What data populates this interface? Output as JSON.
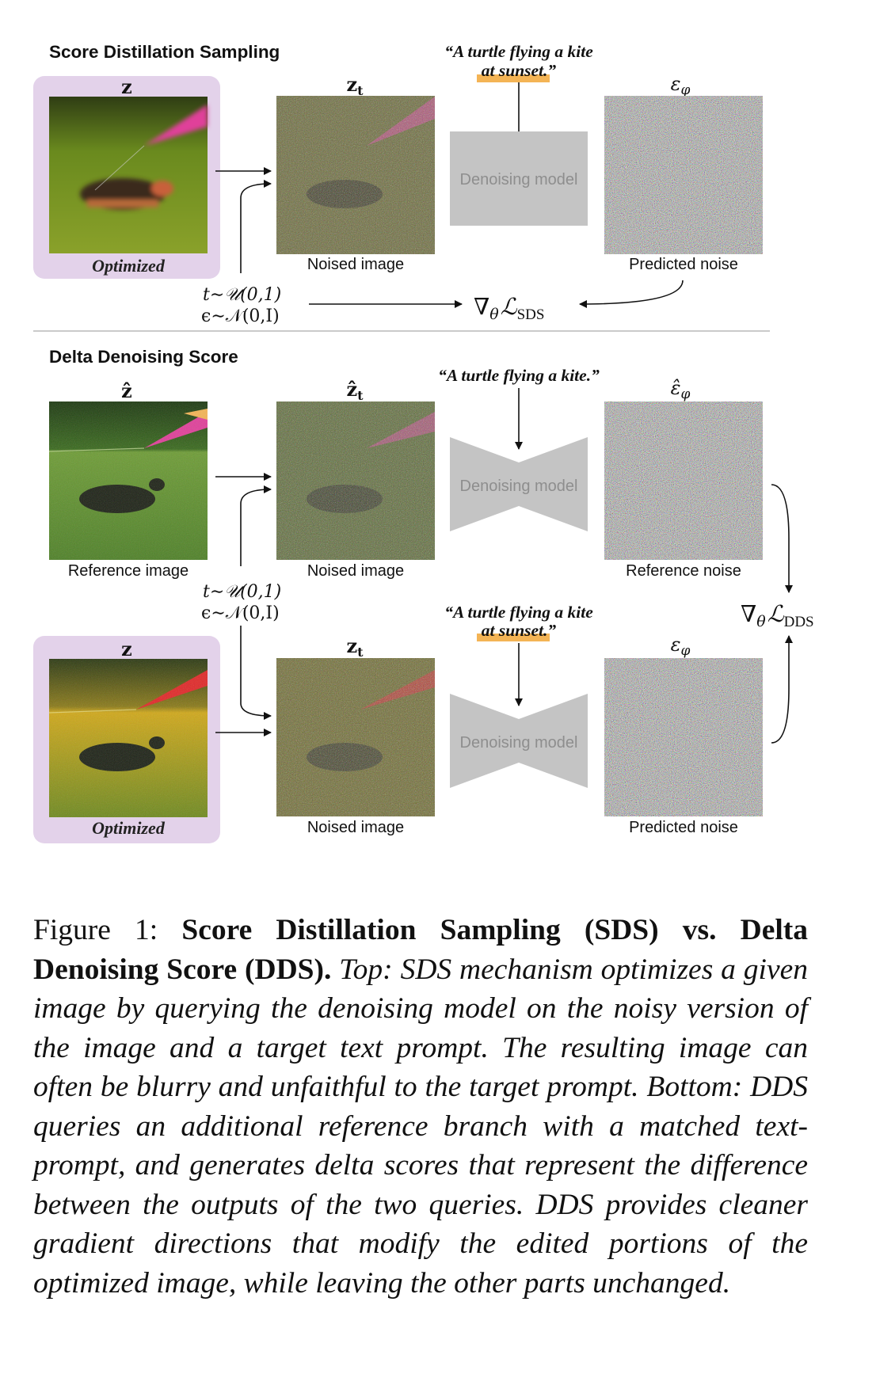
{
  "sds": {
    "title": "Score Distillation Sampling",
    "z_label": "z",
    "zt_label": "z",
    "zt_sub": "t",
    "optimized_label": "Optimized",
    "noised_label": "Noised image",
    "prompt_line1": "“A turtle flying a kite",
    "prompt_line2": "at sunset.”",
    "model_label": "Denoising model",
    "eps_label": "ε",
    "eps_sub": "φ",
    "predicted_label": "Predicted noise",
    "t_dist": "t∼𝒰(0,1)",
    "eps_dist": "ϵ∼𝒩(0,I)",
    "grad": "∇",
    "grad_theta": "θ",
    "grad_L": "ℒ",
    "grad_sub": "SDS"
  },
  "dds": {
    "title": "Delta Denoising Score",
    "zhat_label": "ẑ",
    "zhat_t_label": "ẑ",
    "zhat_t_sub": "t",
    "reference_label": "Reference image",
    "noised_label_top": "Noised image",
    "prompt_ref": "“A turtle flying a kite.”",
    "model_label_top": "Denoising model",
    "epshat_label": "ε̂",
    "epshat_sub": "φ",
    "reference_noise_label": "Reference noise",
    "t_dist": "t∼𝒰(0,1)",
    "eps_dist": "ϵ∼𝒩(0,I)",
    "grad": "∇",
    "grad_theta": "θ",
    "grad_L": "ℒ",
    "grad_sub": "DDS",
    "z_label": "z",
    "zt_label": "z",
    "zt_sub": "t",
    "optimized_label": "Optimized",
    "noised_label_bottom": "Noised image",
    "prompt_line1": "“A turtle flying a kite",
    "prompt_line2": "at sunset.”",
    "model_label_bottom": "Denoising model",
    "eps_label": "ε",
    "eps_sub": "φ",
    "predicted_label": "Predicted noise"
  },
  "colors": {
    "optimized_bg": "#e3d2ea",
    "highlight": "#f4b455",
    "model_gray": "#c4c4c4",
    "model_text": "#8e8e8e"
  },
  "caption": {
    "fig_label": "Figure 1:",
    "bold_title": "Score Distillation Sampling (SDS) vs. Delta Denoising Score (DDS).",
    "top_label": "Top:",
    "top_text": "SDS mechanism optimizes a given image by querying the denoising model on the noisy version of the image and a target text prompt. The resulting image can often be blurry and unfaithful to the target prompt.",
    "bottom_label": "Bottom:",
    "bottom_text": "DDS queries an additional reference branch with a matched text-prompt, and generates delta scores that represent the difference between the outputs of the two queries. DDS provides cleaner gradient directions that modify the edited portions of the optimized image, while leaving the other parts unchanged."
  }
}
